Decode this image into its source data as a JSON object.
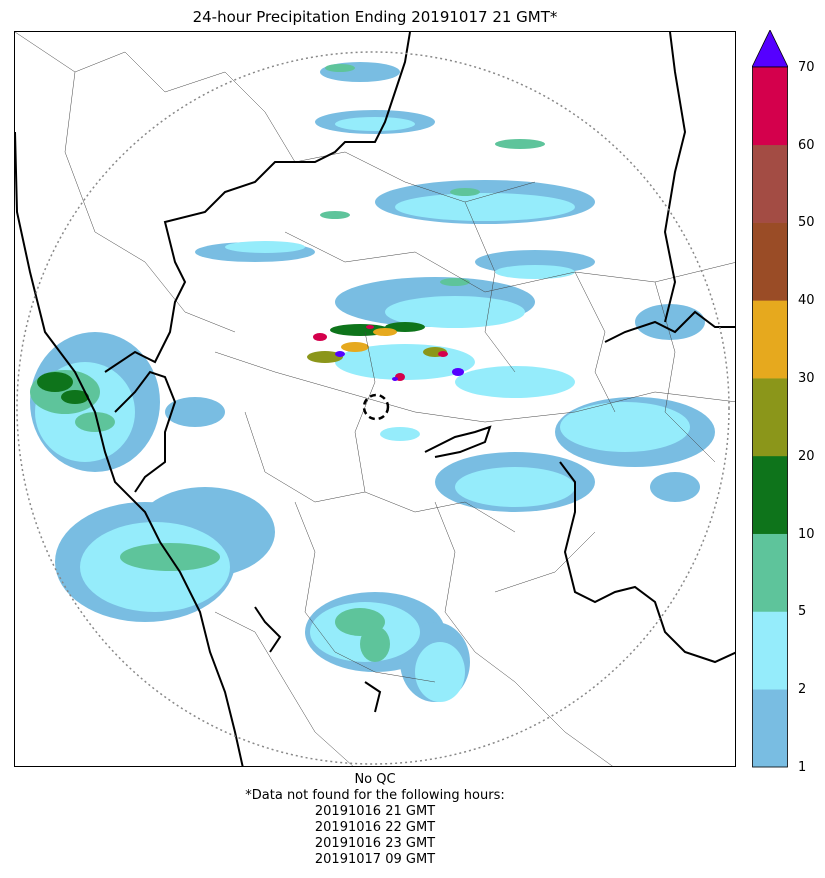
{
  "title": "24-hour Precipitation Ending 20191017 21 GMT*",
  "legend": {
    "ticks": [
      "1",
      "2",
      "5",
      "10",
      "20",
      "30",
      "40",
      "50",
      "60",
      "70"
    ],
    "colors": [
      "#79bde2",
      "#95ecfb",
      "#5ec49b",
      "#0e741b",
      "#8b961a",
      "#e6a91e",
      "#9a4c26",
      "#a34c44",
      "#d4004c"
    ],
    "extend_color": "#5500ff"
  },
  "notes": {
    "qc": "No QC",
    "missing_header": "*Data not found for the following hours:",
    "missing_hours": [
      "20191016 21 GMT",
      "20191016 22 GMT",
      "20191016 23 GMT",
      "20191017 09 GMT"
    ]
  }
}
